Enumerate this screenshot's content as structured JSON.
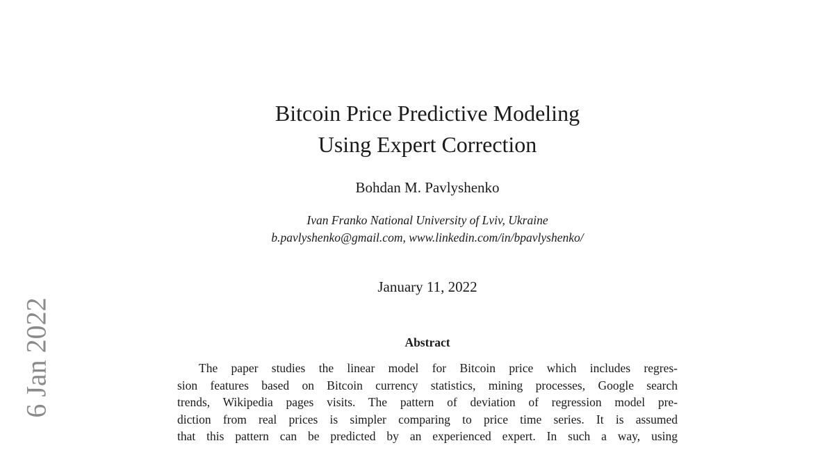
{
  "sidebar": {
    "stamp": "6 Jan 2022"
  },
  "header": {
    "title_lines": [
      "Bitcoin Price Predictive Modeling",
      "Using Expert Correction"
    ],
    "author": "Bohdan M. Pavlyshenko",
    "affiliation": "Ivan Franko National University of Lviv, Ukraine",
    "contact": "b.pavlyshenko@gmail.com, www.linkedin.com/in/bpavlyshenko/",
    "date": "January 11, 2022"
  },
  "abstract": {
    "heading": "Abstract",
    "lines": [
      "The paper studies the linear model for Bitcoin price which includes regres-",
      "sion features based on Bitcoin currency statistics, mining processes, Google search",
      "trends, Wikipedia pages visits. The pattern of deviation of regression model pre-",
      "diction from real prices is simpler comparing to price time series. It is assumed",
      "that this pattern can be predicted by an experienced expert. In such a way, using"
    ]
  }
}
